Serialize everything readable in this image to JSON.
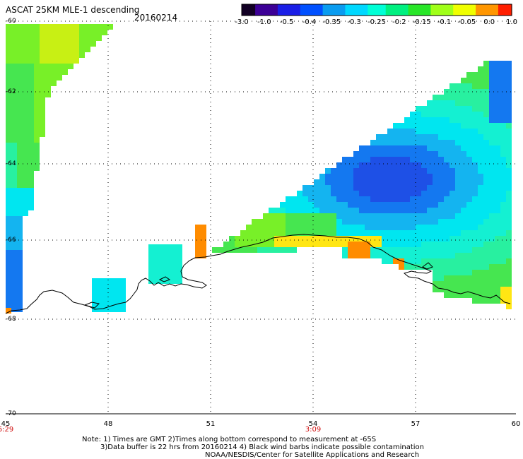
{
  "header": {
    "title": "ASCAT 25KM MLE-1 descending",
    "date": "20160214"
  },
  "colorbar": {
    "labels": [
      "-3.0",
      "-1.0",
      "-0.5",
      "-0.4",
      "-0.35",
      "-0.3",
      "-0.25",
      "-0.2",
      "-0.15",
      "-0.1",
      "-0.05",
      "0.0",
      "1.0"
    ],
    "colors": [
      "#120024",
      "#3c0096",
      "#1a1ee6",
      "#0050ff",
      "#0a9cf0",
      "#00d8ff",
      "#00ffd6",
      "#00f080",
      "#28e628",
      "#a0ff18",
      "#f0ff00",
      "#ff9600",
      "#ff1e00"
    ]
  },
  "axes": {
    "lat_labels": [
      "-60",
      "-62",
      "-64",
      "-66",
      "-68",
      "-70"
    ],
    "lon_labels": [
      "45",
      "48",
      "51",
      "54",
      "57",
      "60"
    ],
    "time_labels": [
      "6:29",
      "3:09"
    ]
  },
  "notes": {
    "line1": "Note: 1) Times are GMT 2)Times along bottom correspond to measurement at -65S",
    "line2": "3)Data buffer is 22 hrs from 20160214 4) Black wind barbs indicate possible contamination",
    "line3": "NOAA/NESDIS/Center for Satellite Applications and Research"
  }
}
